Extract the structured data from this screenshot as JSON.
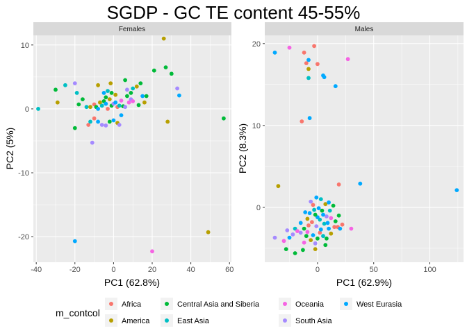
{
  "chart_data": {
    "title": "SGDP - GC TE content 45-55%",
    "legend": {
      "title": "m_contcol",
      "position": "bottom",
      "entries": [
        {
          "name": "Africa",
          "color": "#F8766D"
        },
        {
          "name": "America",
          "color": "#B79F00"
        },
        {
          "name": "Central Asia and Siberia",
          "color": "#00BA38"
        },
        {
          "name": "East Asia",
          "color": "#00BFC4"
        },
        {
          "name": "Oceania",
          "color": "#F564E3"
        },
        {
          "name": "South Asia",
          "color": "#A58AFF"
        },
        {
          "name": "West Eurasia",
          "color": "#00A9FF"
        }
      ]
    },
    "panels": [
      {
        "type": "scatter",
        "strip_label": "Females",
        "xlabel": "PC1 (62.8%)",
        "ylabel": "PC2 (5%)",
        "xlim": [
          -41.5,
          61
        ],
        "ylim": [
          -24,
          11.5
        ],
        "x_ticks": [
          -40,
          -20,
          0,
          20,
          40,
          60
        ],
        "x_tick_labels": [
          "-40",
          "-20",
          "0",
          "20",
          "40",
          "60"
        ],
        "y_ticks": [
          -20,
          -10,
          0,
          10
        ],
        "y_tick_labels": [
          "-20",
          "-10",
          "0",
          "10"
        ],
        "grid": true,
        "points": [
          {
            "x": 26,
            "y": 11,
            "g": "America"
          },
          {
            "x": 21,
            "y": 6,
            "g": "Central Asia and Siberia"
          },
          {
            "x": 27,
            "y": 6.5,
            "g": "Central Asia and Siberia"
          },
          {
            "x": 30,
            "y": 5.5,
            "g": "Central Asia and Siberia"
          },
          {
            "x": 57,
            "y": -1.5,
            "g": "Central Asia and Siberia"
          },
          {
            "x": 28,
            "y": -2,
            "g": "America"
          },
          {
            "x": 33,
            "y": 3.2,
            "g": "South Asia"
          },
          {
            "x": 34,
            "y": 2.1,
            "g": "West Eurasia"
          },
          {
            "x": 49,
            "y": -19.3,
            "g": "America"
          },
          {
            "x": 20,
            "y": -22.3,
            "g": "Oceania"
          },
          {
            "x": -20,
            "y": -20.7,
            "g": "West Eurasia"
          },
          {
            "x": -39,
            "y": 0,
            "g": "East Asia"
          },
          {
            "x": -30,
            "y": 3,
            "g": "Central Asia and Siberia"
          },
          {
            "x": -25,
            "y": 3.7,
            "g": "East Asia"
          },
          {
            "x": -29,
            "y": 1,
            "g": "America"
          },
          {
            "x": -20,
            "y": 4,
            "g": "South Asia"
          },
          {
            "x": -19,
            "y": 2.5,
            "g": "East Asia"
          },
          {
            "x": -18,
            "y": 0.7,
            "g": "Central Asia and Siberia"
          },
          {
            "x": -20,
            "y": -3,
            "g": "Central Asia and Siberia"
          },
          {
            "x": -11,
            "y": -5.3,
            "g": "South Asia"
          },
          {
            "x": -13,
            "y": -2.5,
            "g": "Africa"
          },
          {
            "x": -12,
            "y": -2,
            "g": "East Asia"
          },
          {
            "x": -10,
            "y": -1.5,
            "g": "Africa"
          },
          {
            "x": -8,
            "y": -2,
            "g": "West Eurasia"
          },
          {
            "x": -6,
            "y": -2.5,
            "g": "South Asia"
          },
          {
            "x": -4,
            "y": -2.6,
            "g": "South Asia"
          },
          {
            "x": -2,
            "y": -2,
            "g": "Central Asia and Siberia"
          },
          {
            "x": 0,
            "y": -1.8,
            "g": "West Eurasia"
          },
          {
            "x": 2,
            "y": -2.2,
            "g": "America"
          },
          {
            "x": 3,
            "y": -2.5,
            "g": "South Asia"
          },
          {
            "x": -16,
            "y": 1.5,
            "g": "Central Asia and Siberia"
          },
          {
            "x": -14,
            "y": 0.3,
            "g": "East Asia"
          },
          {
            "x": -12,
            "y": 0.3,
            "g": "America"
          },
          {
            "x": -10,
            "y": 0.7,
            "g": "Africa"
          },
          {
            "x": -9,
            "y": 0.3,
            "g": "Central Asia and Siberia"
          },
          {
            "x": -8,
            "y": 0,
            "g": "West Eurasia"
          },
          {
            "x": -7,
            "y": 1,
            "g": "America"
          },
          {
            "x": -6,
            "y": 0.5,
            "g": "East Asia"
          },
          {
            "x": -5,
            "y": 1.2,
            "g": "Central Asia and Siberia"
          },
          {
            "x": -4,
            "y": 0.8,
            "g": "West Eurasia"
          },
          {
            "x": -3,
            "y": 0,
            "g": "Africa"
          },
          {
            "x": -2,
            "y": 1.5,
            "g": "America"
          },
          {
            "x": -1,
            "y": 0.5,
            "g": "Central Asia and Siberia"
          },
          {
            "x": 0,
            "y": 0.8,
            "g": "South Asia"
          },
          {
            "x": 1,
            "y": 1,
            "g": "West Eurasia"
          },
          {
            "x": 2,
            "y": 0.3,
            "g": "Africa"
          },
          {
            "x": 3,
            "y": 0.5,
            "g": "East Asia"
          },
          {
            "x": 4,
            "y": 1.3,
            "g": "Oceania"
          },
          {
            "x": 5,
            "y": 0.4,
            "g": "Central Asia and Siberia"
          },
          {
            "x": -8,
            "y": 3.7,
            "g": "America"
          },
          {
            "x": -5,
            "y": 2.5,
            "g": "West Eurasia"
          },
          {
            "x": -4,
            "y": 1.8,
            "g": "Central Asia and Siberia"
          },
          {
            "x": -3,
            "y": 2.8,
            "g": "East Asia"
          },
          {
            "x": -1,
            "y": 2.5,
            "g": "Central Asia and Siberia"
          },
          {
            "x": 1,
            "y": 2.2,
            "g": "America"
          },
          {
            "x": -1.5,
            "y": 4,
            "g": "America"
          },
          {
            "x": 6,
            "y": 4.5,
            "g": "Central Asia and Siberia"
          },
          {
            "x": 7,
            "y": 3,
            "g": "South Asia"
          },
          {
            "x": 9,
            "y": 2.5,
            "g": "Central Asia and Siberia"
          },
          {
            "x": 10,
            "y": 3.2,
            "g": "East Asia"
          },
          {
            "x": 12,
            "y": 3.5,
            "g": "America"
          },
          {
            "x": 14,
            "y": 4,
            "g": "Central Asia and Siberia"
          },
          {
            "x": 15,
            "y": 2,
            "g": "West Eurasia"
          },
          {
            "x": 17,
            "y": 2,
            "g": "Central Asia and Siberia"
          },
          {
            "x": 16,
            "y": 1,
            "g": "America"
          },
          {
            "x": 13,
            "y": 0.6,
            "g": "Central Asia and Siberia"
          },
          {
            "x": 8,
            "y": 1,
            "g": "Oceania"
          },
          {
            "x": 9,
            "y": 1.5,
            "g": "South Asia"
          },
          {
            "x": 10,
            "y": 1.2,
            "g": "Oceania"
          },
          {
            "x": 6,
            "y": 0.3,
            "g": "South Asia"
          },
          {
            "x": 4,
            "y": -1,
            "g": "West Eurasia"
          },
          {
            "x": 7,
            "y": 2,
            "g": "Central Asia and Siberia"
          }
        ]
      },
      {
        "type": "scatter",
        "strip_label": "Males",
        "xlabel": "PC1 (62.9%)",
        "ylabel": "PC2 (8.3%)",
        "xlim": [
          -47,
          130
        ],
        "ylim": [
          -6.7,
          21
        ],
        "x_ticks": [
          0,
          50,
          100
        ],
        "x_tick_labels": [
          "0",
          "50",
          "100"
        ],
        "y_ticks": [
          0,
          10,
          20
        ],
        "y_tick_labels": [
          "0",
          "10",
          "20"
        ],
        "grid": true,
        "points": [
          {
            "x": -38,
            "y": 18.9,
            "g": "West Eurasia"
          },
          {
            "x": -25,
            "y": 19.5,
            "g": "Oceania"
          },
          {
            "x": -12,
            "y": 18.9,
            "g": "Africa"
          },
          {
            "x": -3,
            "y": 19.7,
            "g": "Africa"
          },
          {
            "x": -8,
            "y": 18,
            "g": "West Eurasia"
          },
          {
            "x": -10,
            "y": 17.6,
            "g": "Africa"
          },
          {
            "x": 0,
            "y": 17.5,
            "g": "Africa"
          },
          {
            "x": -8,
            "y": 16.9,
            "g": "America"
          },
          {
            "x": 5,
            "y": 16.1,
            "g": "West Eurasia"
          },
          {
            "x": 6,
            "y": 15.9,
            "g": "West Eurasia"
          },
          {
            "x": -8,
            "y": 15.8,
            "g": "East Asia"
          },
          {
            "x": 16,
            "y": 14.8,
            "g": "West Eurasia"
          },
          {
            "x": 27,
            "y": 18.1,
            "g": "Oceania"
          },
          {
            "x": -14,
            "y": 10.5,
            "g": "Africa"
          },
          {
            "x": -7,
            "y": 10.9,
            "g": "West Eurasia"
          },
          {
            "x": -35,
            "y": 2.6,
            "g": "America"
          },
          {
            "x": 19,
            "y": 2.8,
            "g": "Africa"
          },
          {
            "x": 38,
            "y": 2.9,
            "g": "West Eurasia"
          },
          {
            "x": 124,
            "y": 2.1,
            "g": "West Eurasia"
          },
          {
            "x": -38,
            "y": -3.7,
            "g": "South Asia"
          },
          {
            "x": -28,
            "y": -5.1,
            "g": "Central Asia and Siberia"
          },
          {
            "x": -20,
            "y": -5.6,
            "g": "Central Asia and Siberia"
          },
          {
            "x": -13,
            "y": -5.2,
            "g": "Central Asia and Siberia"
          },
          {
            "x": -2,
            "y": -5.1,
            "g": "America"
          },
          {
            "x": -30,
            "y": -4.1,
            "g": "Oceania"
          },
          {
            "x": -25,
            "y": -3.7,
            "g": "West Eurasia"
          },
          {
            "x": -22,
            "y": -3.3,
            "g": "South Asia"
          },
          {
            "x": -15,
            "y": -3.1,
            "g": "South Asia"
          },
          {
            "x": -27,
            "y": -2.8,
            "g": "South Asia"
          },
          {
            "x": -20,
            "y": -2.6,
            "g": "East Asia"
          },
          {
            "x": -18,
            "y": -2.9,
            "g": "Oceania"
          },
          {
            "x": -12,
            "y": -2.6,
            "g": "Central Asia and Siberia"
          },
          {
            "x": -8,
            "y": -2.2,
            "g": "Africa"
          },
          {
            "x": -10,
            "y": -3.5,
            "g": "Central Asia and Siberia"
          },
          {
            "x": -6,
            "y": -4,
            "g": "America"
          },
          {
            "x": -4,
            "y": -3.4,
            "g": "West Eurasia"
          },
          {
            "x": 0,
            "y": -3.8,
            "g": "Central Asia and Siberia"
          },
          {
            "x": 2,
            "y": -3.1,
            "g": "Africa"
          },
          {
            "x": 5,
            "y": -3.5,
            "g": "East Asia"
          },
          {
            "x": 8,
            "y": -3.8,
            "g": "Central Asia and Siberia"
          },
          {
            "x": 12,
            "y": -3.2,
            "g": "America"
          },
          {
            "x": 10,
            "y": -2.6,
            "g": "West Eurasia"
          },
          {
            "x": 15,
            "y": -2.4,
            "g": "Africa"
          },
          {
            "x": 18,
            "y": -2.4,
            "g": "Africa"
          },
          {
            "x": 20,
            "y": -2.6,
            "g": "West Eurasia"
          },
          {
            "x": 30,
            "y": -2.6,
            "g": "Oceania"
          },
          {
            "x": 22,
            "y": -2.1,
            "g": "Africa"
          },
          {
            "x": 16,
            "y": -1.7,
            "g": "Central Asia and Siberia"
          },
          {
            "x": 19,
            "y": -1,
            "g": "Central Asia and Siberia"
          },
          {
            "x": 12,
            "y": -1.3,
            "g": "Oceania"
          },
          {
            "x": 8,
            "y": -1.1,
            "g": "South Asia"
          },
          {
            "x": 5,
            "y": -0.9,
            "g": "West Eurasia"
          },
          {
            "x": 2,
            "y": -1.5,
            "g": "East Asia"
          },
          {
            "x": 0,
            "y": -1.2,
            "g": "West Eurasia"
          },
          {
            "x": -2,
            "y": -0.9,
            "g": "Central Asia and Siberia"
          },
          {
            "x": -5,
            "y": -1.8,
            "g": "Africa"
          },
          {
            "x": -7,
            "y": -0.7,
            "g": "West Eurasia"
          },
          {
            "x": -9,
            "y": -1.4,
            "g": "America"
          },
          {
            "x": -11,
            "y": -0.6,
            "g": "West Eurasia"
          },
          {
            "x": -3,
            "y": -0.3,
            "g": "East Asia"
          },
          {
            "x": 1,
            "y": -0.1,
            "g": "West Eurasia"
          },
          {
            "x": 4,
            "y": -0.4,
            "g": "Central Asia and Siberia"
          },
          {
            "x": 7,
            "y": 0.4,
            "g": "America"
          },
          {
            "x": 10,
            "y": 0.6,
            "g": "West Eurasia"
          },
          {
            "x": -4,
            "y": 0.3,
            "g": "Africa"
          },
          {
            "x": -1,
            "y": 1.2,
            "g": "West Eurasia"
          },
          {
            "x": 3,
            "y": 1,
            "g": "East Asia"
          },
          {
            "x": -6,
            "y": 0.7,
            "g": "South Asia"
          },
          {
            "x": 6,
            "y": -2,
            "g": "East Asia"
          },
          {
            "x": 9,
            "y": -1.9,
            "g": "West Eurasia"
          },
          {
            "x": -1,
            "y": -2.3,
            "g": "South Asia"
          },
          {
            "x": 3,
            "y": -2.7,
            "g": "West Eurasia"
          },
          {
            "x": -9,
            "y": -3,
            "g": "Oceania"
          },
          {
            "x": -15,
            "y": -1.9,
            "g": "West Eurasia"
          },
          {
            "x": 14,
            "y": 0.2,
            "g": "Central Asia and Siberia"
          },
          {
            "x": 11,
            "y": -0.4,
            "g": "East Asia"
          },
          {
            "x": -2,
            "y": -4.4,
            "g": "South Asia"
          },
          {
            "x": 7,
            "y": -4.6,
            "g": "Central Asia and Siberia"
          },
          {
            "x": -12,
            "y": -4.3,
            "g": "Oceania"
          }
        ]
      }
    ]
  }
}
